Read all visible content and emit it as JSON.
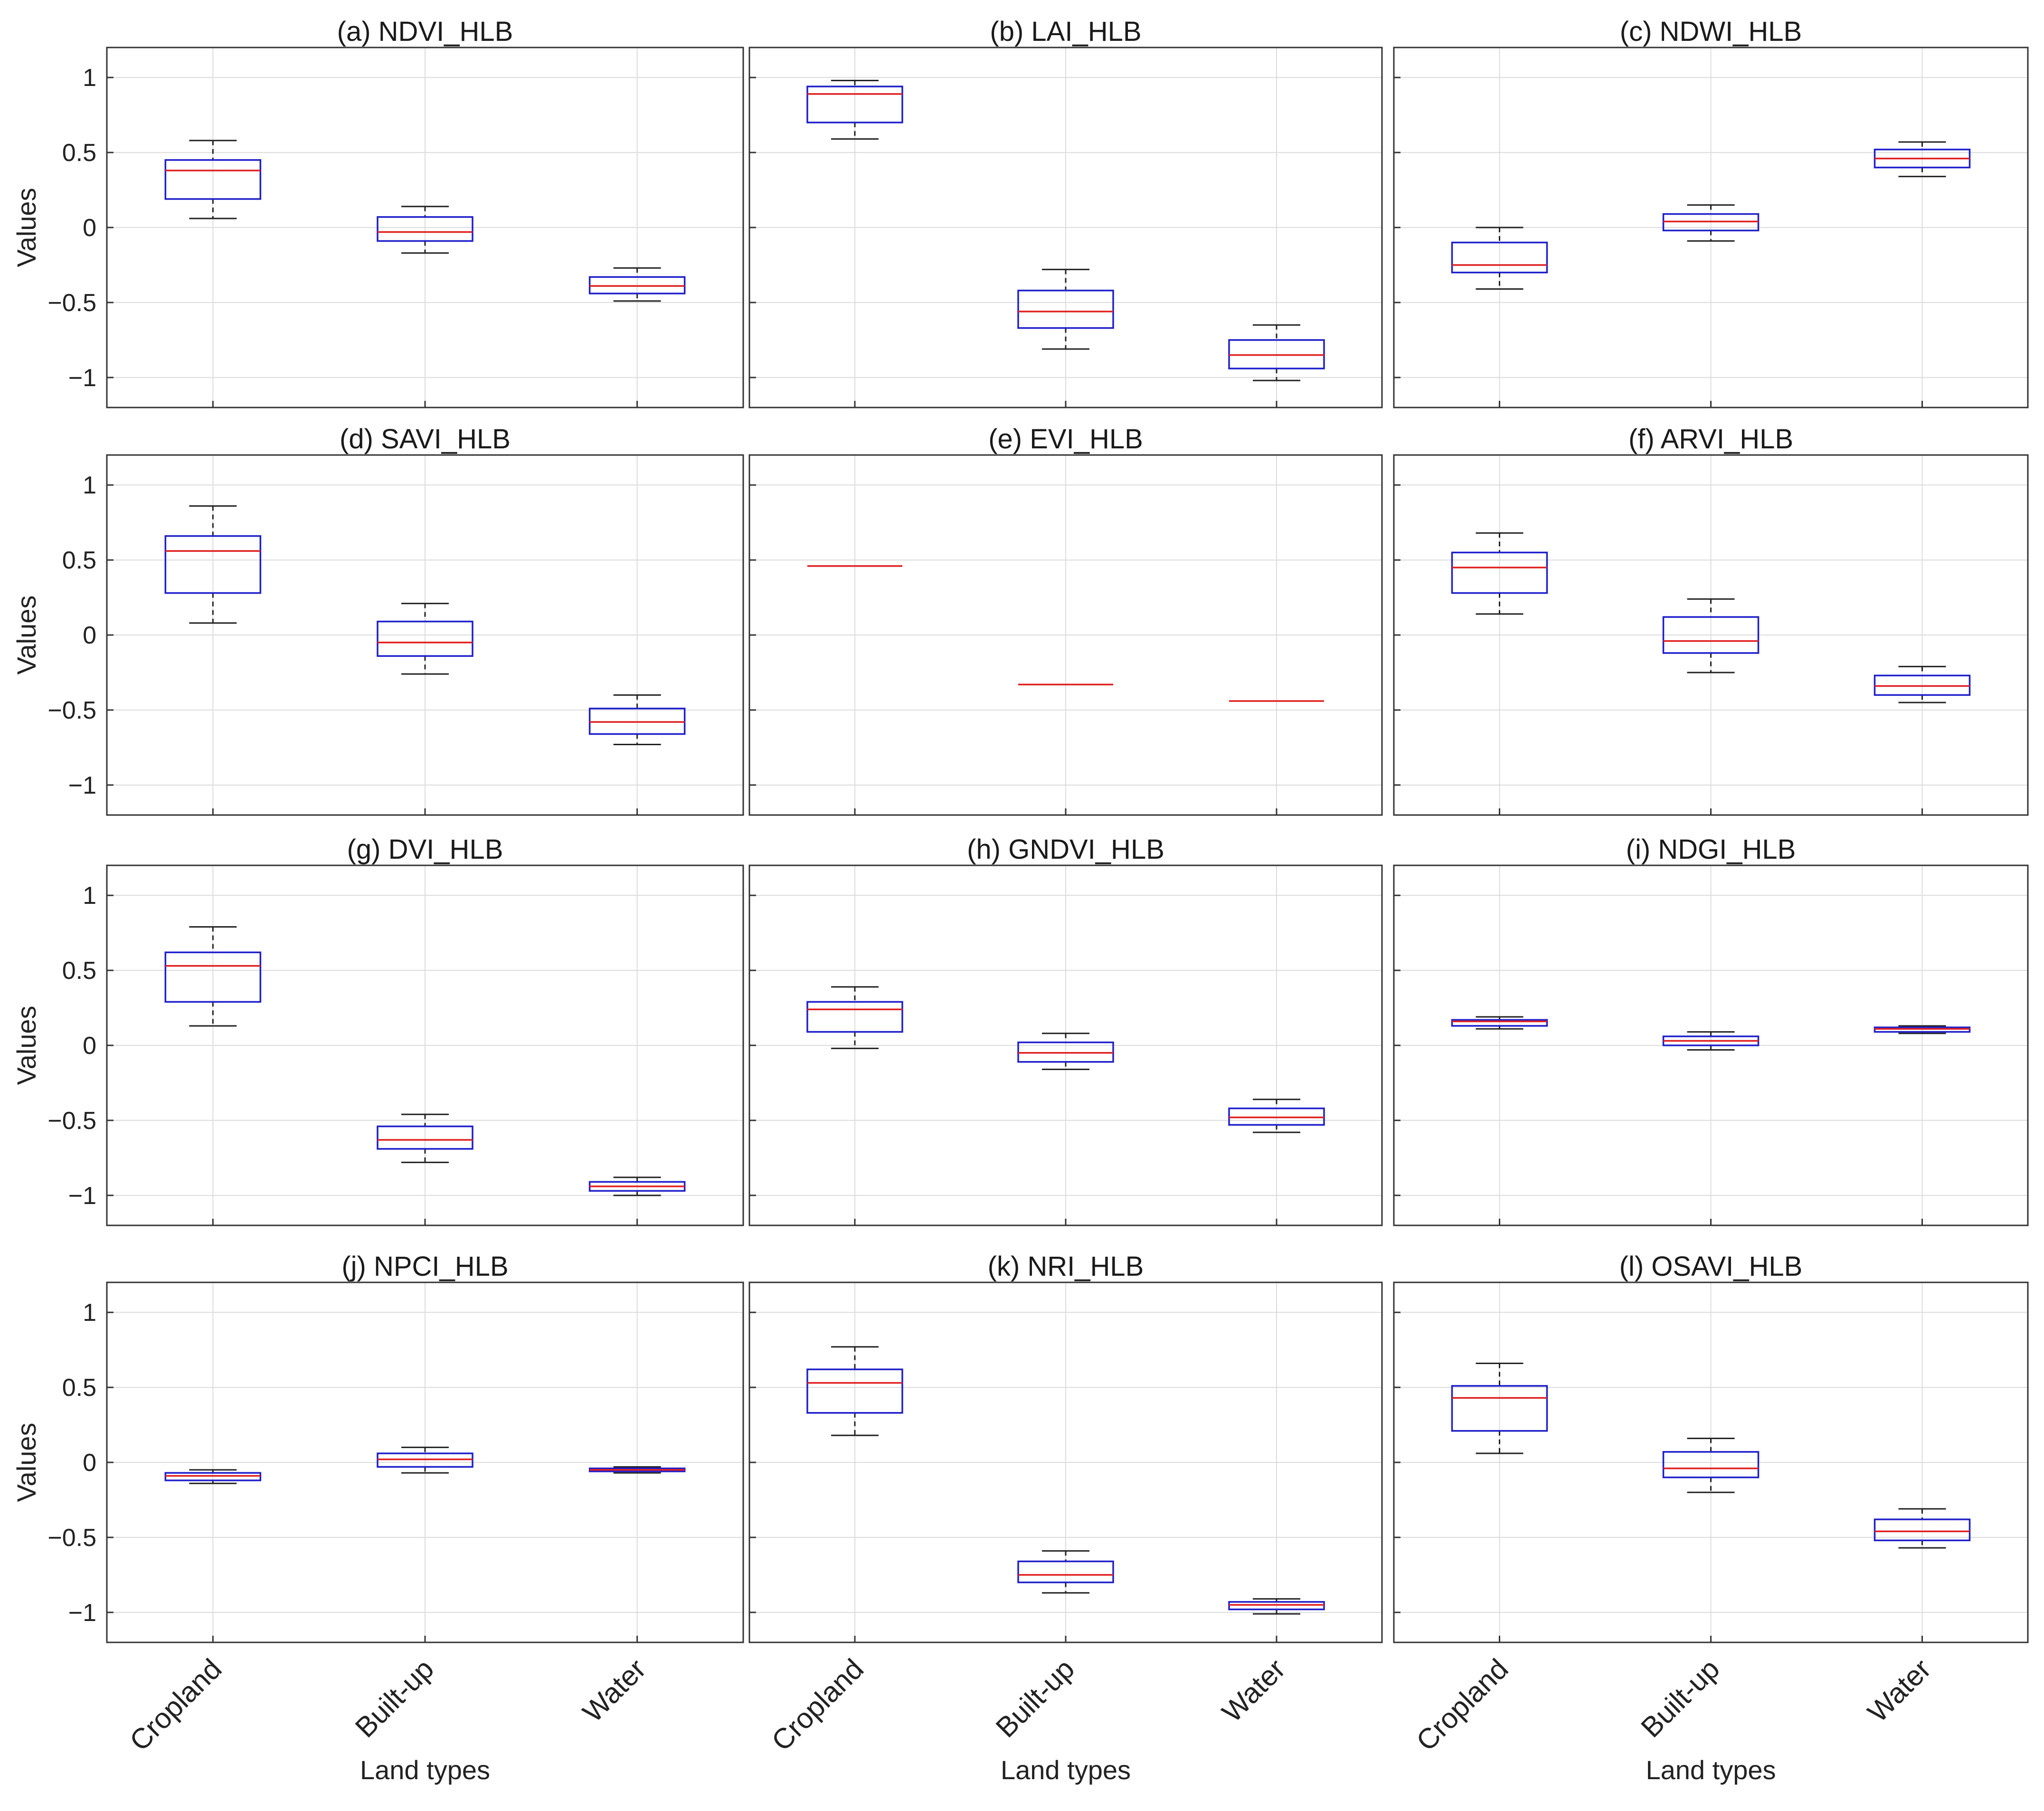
{
  "chart_data": {
    "type": "boxplot",
    "layout": "4x3 grid",
    "xlabel": "Land types",
    "ylabel": "Values",
    "categories": [
      "Cropland",
      "Built-up",
      "Water"
    ],
    "ylim": [
      -1.2,
      1.2
    ],
    "yticks": [
      1,
      0.5,
      0,
      -0.5,
      -1
    ],
    "ytick_labels": [
      "1",
      "0.5",
      "0",
      "−0.5",
      "−1"
    ],
    "colors": {
      "box": "#1f1fcc",
      "median": "#e02020",
      "whisker": "#222222",
      "grid": "#dcdcdc"
    },
    "panels": [
      {
        "title": "(a) NDVI_HLB",
        "boxes": [
          {
            "category": "Cropland",
            "whisker_low": 0.06,
            "q1": 0.19,
            "median": 0.38,
            "q3": 0.45,
            "whisker_high": 0.58
          },
          {
            "category": "Built-up",
            "whisker_low": -0.17,
            "q1": -0.09,
            "median": -0.03,
            "q3": 0.07,
            "whisker_high": 0.14
          },
          {
            "category": "Water",
            "whisker_low": -0.49,
            "q1": -0.44,
            "median": -0.39,
            "q3": -0.33,
            "whisker_high": -0.27
          }
        ]
      },
      {
        "title": "(b) LAI_HLB",
        "boxes": [
          {
            "category": "Cropland",
            "whisker_low": 0.59,
            "q1": 0.7,
            "median": 0.89,
            "q3": 0.94,
            "whisker_high": 0.98
          },
          {
            "category": "Built-up",
            "whisker_low": -0.81,
            "q1": -0.67,
            "median": -0.56,
            "q3": -0.42,
            "whisker_high": -0.28
          },
          {
            "category": "Water",
            "whisker_low": -1.02,
            "q1": -0.94,
            "median": -0.85,
            "q3": -0.75,
            "whisker_high": -0.65
          }
        ]
      },
      {
        "title": "(c) NDWI_HLB",
        "boxes": [
          {
            "category": "Cropland",
            "whisker_low": -0.41,
            "q1": -0.3,
            "median": -0.25,
            "q3": -0.1,
            "whisker_high": 0.0
          },
          {
            "category": "Built-up",
            "whisker_low": -0.09,
            "q1": -0.02,
            "median": 0.04,
            "q3": 0.09,
            "whisker_high": 0.15
          },
          {
            "category": "Water",
            "whisker_low": 0.34,
            "q1": 0.4,
            "median": 0.46,
            "q3": 0.52,
            "whisker_high": 0.57
          }
        ]
      },
      {
        "title": "(d) SAVI_HLB",
        "boxes": [
          {
            "category": "Cropland",
            "whisker_low": 0.08,
            "q1": 0.28,
            "median": 0.56,
            "q3": 0.66,
            "whisker_high": 0.86
          },
          {
            "category": "Built-up",
            "whisker_low": -0.26,
            "q1": -0.14,
            "median": -0.05,
            "q3": 0.09,
            "whisker_high": 0.21
          },
          {
            "category": "Water",
            "whisker_low": -0.73,
            "q1": -0.66,
            "median": -0.58,
            "q3": -0.49,
            "whisker_high": -0.4
          }
        ]
      },
      {
        "title": "(e) EVI_HLB",
        "boxes": [
          {
            "category": "Cropland",
            "whisker_low": 0.46,
            "q1": 0.46,
            "median": 0.46,
            "q3": 0.46,
            "whisker_high": 0.46
          },
          {
            "category": "Built-up",
            "whisker_low": -0.33,
            "q1": -0.33,
            "median": -0.33,
            "q3": -0.33,
            "whisker_high": -0.33
          },
          {
            "category": "Water",
            "whisker_low": -0.44,
            "q1": -0.44,
            "median": -0.44,
            "q3": -0.44,
            "whisker_high": -0.44
          }
        ]
      },
      {
        "title": "(f) ARVI_HLB",
        "boxes": [
          {
            "category": "Cropland",
            "whisker_low": 0.14,
            "q1": 0.28,
            "median": 0.45,
            "q3": 0.55,
            "whisker_high": 0.68
          },
          {
            "category": "Built-up",
            "whisker_low": -0.25,
            "q1": -0.12,
            "median": -0.04,
            "q3": 0.12,
            "whisker_high": 0.24
          },
          {
            "category": "Water",
            "whisker_low": -0.45,
            "q1": -0.4,
            "median": -0.34,
            "q3": -0.27,
            "whisker_high": -0.21
          }
        ]
      },
      {
        "title": "(g) DVI_HLB",
        "boxes": [
          {
            "category": "Cropland",
            "whisker_low": 0.13,
            "q1": 0.29,
            "median": 0.53,
            "q3": 0.62,
            "whisker_high": 0.79
          },
          {
            "category": "Built-up",
            "whisker_low": -0.78,
            "q1": -0.69,
            "median": -0.63,
            "q3": -0.54,
            "whisker_high": -0.46
          },
          {
            "category": "Water",
            "whisker_low": -1.0,
            "q1": -0.97,
            "median": -0.94,
            "q3": -0.91,
            "whisker_high": -0.88
          }
        ]
      },
      {
        "title": "(h) GNDVI_HLB",
        "boxes": [
          {
            "category": "Cropland",
            "whisker_low": -0.02,
            "q1": 0.09,
            "median": 0.24,
            "q3": 0.29,
            "whisker_high": 0.39
          },
          {
            "category": "Built-up",
            "whisker_low": -0.16,
            "q1": -0.11,
            "median": -0.05,
            "q3": 0.02,
            "whisker_high": 0.08
          },
          {
            "category": "Water",
            "whisker_low": -0.58,
            "q1": -0.53,
            "median": -0.48,
            "q3": -0.42,
            "whisker_high": -0.36
          }
        ]
      },
      {
        "title": "(i) NDGI_HLB",
        "boxes": [
          {
            "category": "Cropland",
            "whisker_low": 0.11,
            "q1": 0.13,
            "median": 0.16,
            "q3": 0.17,
            "whisker_high": 0.19
          },
          {
            "category": "Built-up",
            "whisker_low": -0.03,
            "q1": 0.0,
            "median": 0.03,
            "q3": 0.06,
            "whisker_high": 0.09
          },
          {
            "category": "Water",
            "whisker_low": 0.08,
            "q1": 0.09,
            "median": 0.11,
            "q3": 0.12,
            "whisker_high": 0.13
          }
        ]
      },
      {
        "title": "(j) NPCI_HLB",
        "boxes": [
          {
            "category": "Cropland",
            "whisker_low": -0.14,
            "q1": -0.12,
            "median": -0.09,
            "q3": -0.07,
            "whisker_high": -0.05
          },
          {
            "category": "Built-up",
            "whisker_low": -0.07,
            "q1": -0.03,
            "median": 0.02,
            "q3": 0.06,
            "whisker_high": 0.1
          },
          {
            "category": "Water",
            "whisker_low": -0.07,
            "q1": -0.06,
            "median": -0.05,
            "q3": -0.04,
            "whisker_high": -0.03
          }
        ]
      },
      {
        "title": "(k) NRI_HLB",
        "boxes": [
          {
            "category": "Cropland",
            "whisker_low": 0.18,
            "q1": 0.33,
            "median": 0.53,
            "q3": 0.62,
            "whisker_high": 0.77
          },
          {
            "category": "Built-up",
            "whisker_low": -0.87,
            "q1": -0.8,
            "median": -0.75,
            "q3": -0.66,
            "whisker_high": -0.59
          },
          {
            "category": "Water",
            "whisker_low": -1.01,
            "q1": -0.98,
            "median": -0.95,
            "q3": -0.93,
            "whisker_high": -0.91
          }
        ]
      },
      {
        "title": "(l) OSAVI_HLB",
        "boxes": [
          {
            "category": "Cropland",
            "whisker_low": 0.06,
            "q1": 0.21,
            "median": 0.43,
            "q3": 0.51,
            "whisker_high": 0.66
          },
          {
            "category": "Built-up",
            "whisker_low": -0.2,
            "q1": -0.1,
            "median": -0.04,
            "q3": 0.07,
            "whisker_high": 0.16
          },
          {
            "category": "Water",
            "whisker_low": -0.57,
            "q1": -0.52,
            "median": -0.46,
            "q3": -0.38,
            "whisker_high": -0.31
          }
        ]
      }
    ]
  }
}
